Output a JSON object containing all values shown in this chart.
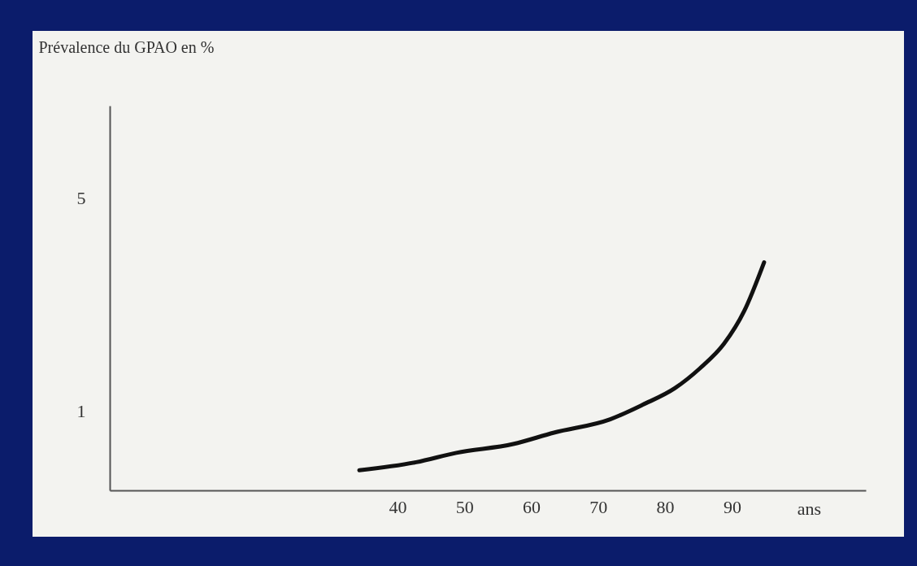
{
  "chart_data": {
    "type": "line",
    "ylabel": "Prévalence du GPAO  en %",
    "xlabel": "ans",
    "log": "y",
    "grid": false,
    "marker": "none",
    "line_style": "solid",
    "xlim": [
      -3,
      110
    ],
    "xticks": [
      40,
      50,
      60,
      70,
      80,
      90
    ],
    "ylim": [
      0.55,
      10
    ],
    "yticks": [
      1,
      5
    ],
    "series": [
      {
        "color": "#111111",
        "x": [
          34.3,
          42.8,
          48.8,
          57.3,
          63.4,
          71.8,
          76.7,
          81.5,
          85.2,
          88.8,
          91.8,
          94.8
        ],
        "values": [
          0.64,
          0.68,
          0.73,
          0.78,
          0.85,
          0.94,
          1.05,
          1.19,
          1.38,
          1.66,
          2.12,
          3.07
        ]
      }
    ]
  }
}
